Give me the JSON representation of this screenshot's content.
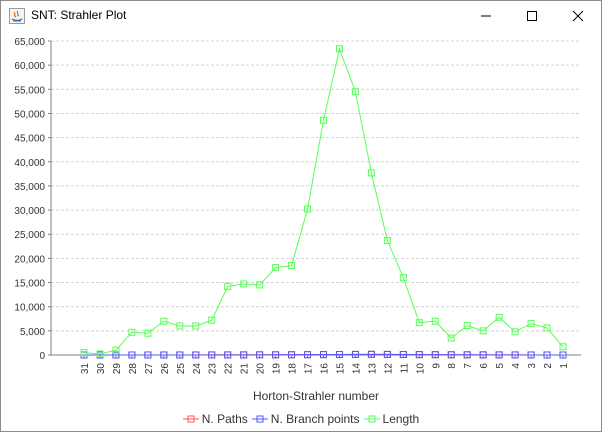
{
  "window": {
    "title": "SNT: Strahler Plot",
    "app_icon": "java-icon",
    "controls": {
      "minimize_icon": "minimize-icon",
      "maximize_icon": "maximize-icon",
      "close_icon": "close-icon"
    }
  },
  "chart_data": {
    "type": "line",
    "title": "",
    "xlabel": "Horton-Strahler number",
    "ylabel": "",
    "categories": [
      "31",
      "30",
      "29",
      "28",
      "27",
      "26",
      "25",
      "24",
      "23",
      "22",
      "21",
      "20",
      "19",
      "18",
      "17",
      "16",
      "15",
      "14",
      "13",
      "12",
      "11",
      "10",
      "9",
      "8",
      "7",
      "6",
      "5",
      "4",
      "3",
      "2",
      "1"
    ],
    "ylim": [
      0,
      65000
    ],
    "yticks": [
      0,
      5000,
      10000,
      15000,
      20000,
      25000,
      30000,
      35000,
      40000,
      45000,
      50000,
      55000,
      60000,
      65000
    ],
    "ytick_labels": [
      "0",
      "5,000",
      "10,000",
      "15,000",
      "20,000",
      "25,000",
      "30,000",
      "35,000",
      "40,000",
      "45,000",
      "50,000",
      "55,000",
      "60,000",
      "65,000"
    ],
    "grid": true,
    "legend_position": "bottom",
    "series": [
      {
        "name": "N. Paths",
        "color": "#ff5555",
        "values": [
          1,
          2,
          3,
          4,
          5,
          7,
          9,
          12,
          15,
          20,
          26,
          33,
          41,
          52,
          66,
          82,
          100,
          120,
          140,
          120,
          100,
          80,
          65,
          50,
          40,
          30,
          22,
          15,
          10,
          5,
          2
        ]
      },
      {
        "name": "N. Branch points",
        "color": "#5555ff",
        "values": [
          0,
          1,
          2,
          3,
          4,
          6,
          8,
          11,
          14,
          19,
          25,
          32,
          40,
          51,
          65,
          81,
          99,
          119,
          139,
          119,
          99,
          79,
          64,
          49,
          39,
          29,
          21,
          14,
          9,
          4,
          1
        ]
      },
      {
        "name": "Length",
        "color": "#55ff55",
        "values": [
          500,
          200,
          1000,
          4700,
          4500,
          7000,
          6000,
          6000,
          7200,
          14200,
          14700,
          14500,
          18100,
          18500,
          30200,
          48600,
          63400,
          54500,
          37700,
          23700,
          16000,
          6700,
          7000,
          3500,
          6100,
          5000,
          7800,
          4800,
          6500,
          5600,
          1700
        ]
      }
    ],
    "legend": {
      "marker_icon": "square-marker-icon"
    }
  }
}
